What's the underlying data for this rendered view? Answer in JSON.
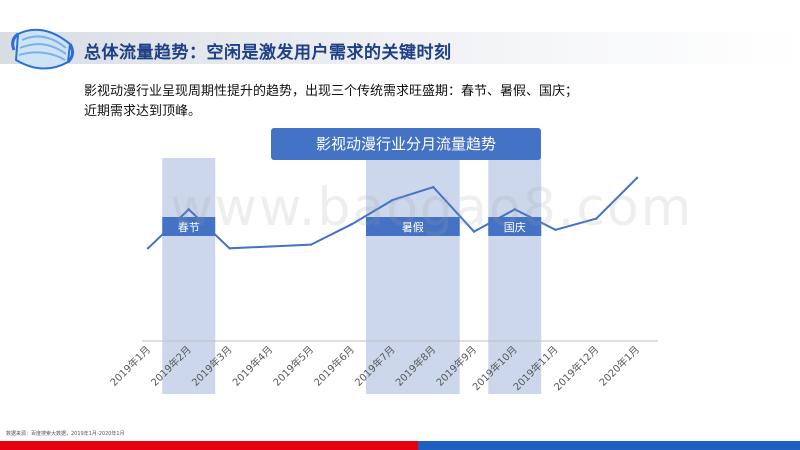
{
  "header": {
    "title": "总体流量趋势：空闲是激发用户需求的关键时刻"
  },
  "intro": {
    "line1": "影视动漫行业呈现周期性提升的趋势，出现三个传统需求旺盛期：春节、暑假、国庆；",
    "line2": "近期需求达到顶峰。"
  },
  "watermark": "www.baogao8.com",
  "source_note": "数据来源：百度搜索大数据，2019年1月-2020年1月",
  "colors": {
    "title": "#1f3f87",
    "accent": "#4472c4",
    "highlight": "#ccd7ec",
    "red_bar": "#e60012",
    "blue_bar": "#1f5fbf"
  },
  "chart_data": {
    "type": "line",
    "title": "影视动漫行业分月流量趋势",
    "categories": [
      "2019年1月",
      "2019年2月",
      "2019年3月",
      "2019年4月",
      "2019年5月",
      "2019年6月",
      "2019年7月",
      "2019年8月",
      "2019年9月",
      "2019年10月",
      "2019年11月",
      "2019年12月",
      "2020年1月"
    ],
    "series": [
      {
        "values": [
          50,
          71,
          50,
          51,
          52,
          63,
          76,
          83,
          59,
          71,
          60,
          66,
          88
        ]
      }
    ],
    "ylim": [
      0,
      130
    ],
    "grid": false,
    "highlights": [
      {
        "label": "春节",
        "from": "2019年1月",
        "to": "2019年2月"
      },
      {
        "label": "暑假",
        "from": "2019年6月",
        "to": "2019年8月"
      },
      {
        "label": "国庆",
        "from": "2019年9月",
        "to": "2019年10月"
      }
    ]
  }
}
